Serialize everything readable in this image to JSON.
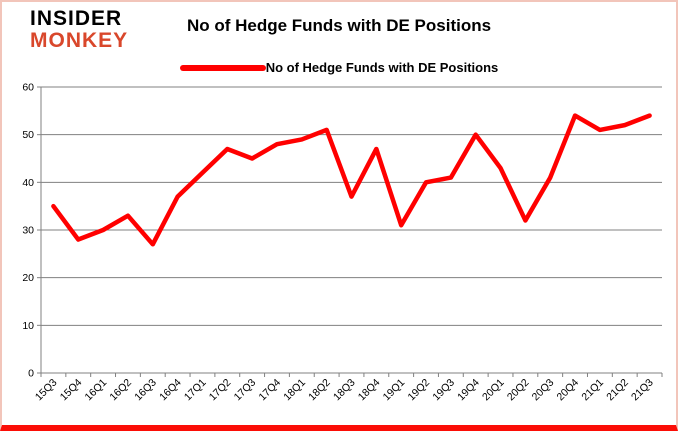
{
  "brand": {
    "line1": "INSIDER",
    "line2": "MONKEY",
    "monkey_color": "#D9472B"
  },
  "header": {
    "title": "No of Hedge Funds with DE Positions"
  },
  "legend": {
    "label": "No of Hedge Funds with DE Positions",
    "color": "#FF0000"
  },
  "chart_data": {
    "type": "line",
    "title": "No of Hedge Funds with DE Positions",
    "categories": [
      "15Q3",
      "15Q4",
      "16Q1",
      "16Q2",
      "16Q3",
      "16Q4",
      "17Q1",
      "17Q2",
      "17Q3",
      "17Q4",
      "18Q1",
      "18Q2",
      "18Q3",
      "18Q4",
      "19Q1",
      "19Q2",
      "19Q3",
      "19Q4",
      "20Q1",
      "20Q2",
      "20Q3",
      "20Q4",
      "21Q1",
      "21Q2",
      "21Q3"
    ],
    "series": [
      {
        "name": "No of Hedge Funds with DE Positions",
        "color": "#FF0000",
        "values": [
          35,
          28,
          30,
          33,
          27,
          37,
          42,
          47,
          45,
          48,
          49,
          51,
          37,
          47,
          31,
          40,
          41,
          50,
          43,
          32,
          41,
          54,
          51,
          52,
          54
        ]
      }
    ],
    "xlabel": "",
    "ylabel": "",
    "ylim": [
      0,
      60
    ],
    "yticks": [
      0,
      10,
      20,
      30,
      40,
      50,
      60
    ],
    "grid": true,
    "legend_position": "top",
    "gridline_color": "#808080",
    "axis_color": "#808080",
    "tick_label_color": "#000000"
  }
}
